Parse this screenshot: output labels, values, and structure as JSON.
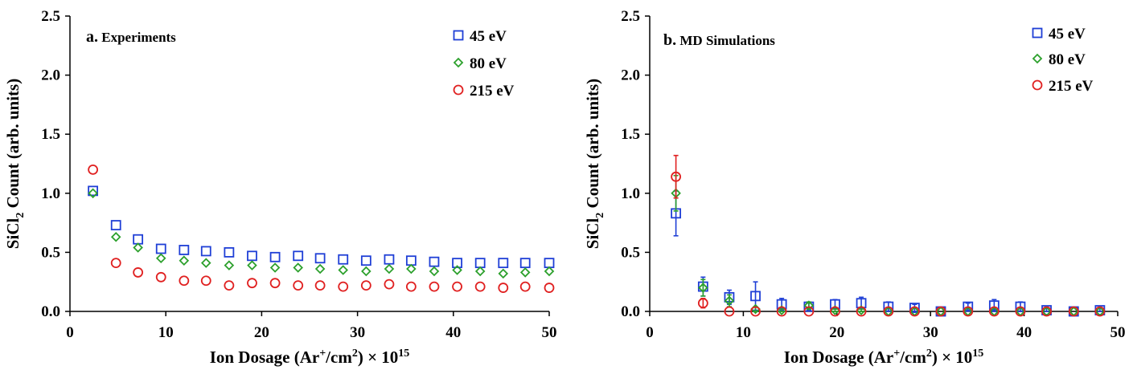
{
  "chart_data": [
    {
      "type": "scatter",
      "panel_label": "a.",
      "panel_title": "Experiments",
      "xlabel": "Ion Dosage (Ar",
      "xlabel_sup1": "+",
      "xlabel_mid": "/cm",
      "xlabel_sup2": "2",
      "xlabel_end": ") × 10",
      "xlabel_sup3": "15",
      "ylabel": "SiCl",
      "ylabel_sub": "2",
      "ylabel_rest": " Count (arb. units)",
      "xlim": [
        0,
        50
      ],
      "ylim": [
        0,
        2.5
      ],
      "xticks": [
        "0",
        "10",
        "20",
        "30",
        "40",
        "50"
      ],
      "yticks": [
        "0.0",
        "0.5",
        "1.0",
        "1.5",
        "2.0",
        "2.5"
      ],
      "legend_position": "top-right",
      "series": [
        {
          "name": "45 eV",
          "marker": "square",
          "color": "#1f3fd6",
          "x": [
            2.4,
            4.8,
            7.1,
            9.5,
            11.9,
            14.2,
            16.6,
            19.0,
            21.4,
            23.8,
            26.1,
            28.5,
            30.9,
            33.3,
            35.6,
            38.0,
            40.4,
            42.8,
            45.2,
            47.5,
            50.0
          ],
          "y": [
            1.02,
            0.73,
            0.61,
            0.53,
            0.52,
            0.51,
            0.5,
            0.47,
            0.46,
            0.47,
            0.45,
            0.44,
            0.43,
            0.44,
            0.43,
            0.42,
            0.41,
            0.41,
            0.41,
            0.41,
            0.41
          ]
        },
        {
          "name": "80 eV",
          "marker": "diamond",
          "color": "#2ca02c",
          "x": [
            2.4,
            4.8,
            7.1,
            9.5,
            11.9,
            14.2,
            16.6,
            19.0,
            21.4,
            23.8,
            26.1,
            28.5,
            30.9,
            33.3,
            35.6,
            38.0,
            40.4,
            42.8,
            45.2,
            47.5,
            50.0
          ],
          "y": [
            1.0,
            0.63,
            0.54,
            0.45,
            0.43,
            0.41,
            0.39,
            0.39,
            0.37,
            0.37,
            0.36,
            0.35,
            0.34,
            0.36,
            0.36,
            0.34,
            0.35,
            0.34,
            0.32,
            0.33,
            0.34
          ]
        },
        {
          "name": "215 eV",
          "marker": "circle",
          "color": "#e02020",
          "x": [
            2.4,
            4.8,
            7.1,
            9.5,
            11.9,
            14.2,
            16.6,
            19.0,
            21.4,
            23.8,
            26.1,
            28.5,
            30.9,
            33.3,
            35.6,
            38.0,
            40.4,
            42.8,
            45.2,
            47.5,
            50.0
          ],
          "y": [
            1.2,
            0.41,
            0.33,
            0.29,
            0.26,
            0.26,
            0.22,
            0.24,
            0.24,
            0.22,
            0.22,
            0.21,
            0.22,
            0.23,
            0.21,
            0.21,
            0.21,
            0.21,
            0.2,
            0.21,
            0.2
          ]
        }
      ]
    },
    {
      "type": "scatter",
      "panel_label": "b.",
      "panel_title": "MD Simulations",
      "xlabel": "Ion Dosage (Ar",
      "xlabel_sup1": "+",
      "xlabel_mid": "/cm",
      "xlabel_sup2": "2",
      "xlabel_end": ") × 10",
      "xlabel_sup3": "15",
      "ylabel": "SiCl",
      "ylabel_sub": "2",
      "ylabel_rest": " Count (arb. units)",
      "xlim": [
        0,
        50
      ],
      "ylim": [
        0,
        2.5
      ],
      "xticks": [
        "0",
        "10",
        "20",
        "30",
        "40",
        "50"
      ],
      "yticks": [
        "0.0",
        "0.5",
        "1.0",
        "1.5",
        "2.0",
        "2.5"
      ],
      "legend_position": "top-right",
      "series": [
        {
          "name": "45 eV",
          "marker": "square",
          "color": "#1f3fd6",
          "x": [
            2.8,
            5.7,
            8.5,
            11.3,
            14.1,
            17.0,
            19.8,
            22.6,
            25.5,
            28.3,
            31.1,
            34.0,
            36.8,
            39.6,
            42.4,
            45.3,
            48.1
          ],
          "y": [
            0.83,
            0.21,
            0.12,
            0.13,
            0.06,
            0.04,
            0.06,
            0.07,
            0.04,
            0.03,
            0.0,
            0.04,
            0.05,
            0.04,
            0.01,
            0.0,
            0.01
          ],
          "err": [
            0.19,
            0.08,
            0.06,
            0.12,
            0.05,
            0.03,
            0.04,
            0.05,
            0.04,
            0.03,
            0.0,
            0.03,
            0.05,
            0.04,
            0.02,
            0.0,
            0.02
          ]
        },
        {
          "name": "80 eV",
          "marker": "diamond",
          "color": "#2ca02c",
          "x": [
            2.8,
            5.7,
            8.5,
            11.3,
            14.1,
            17.0,
            19.8,
            22.6,
            25.5,
            28.3,
            31.1,
            34.0,
            36.8,
            39.6,
            42.4,
            45.3,
            48.1
          ],
          "y": [
            1.0,
            0.2,
            0.09,
            0.02,
            0.01,
            0.05,
            0.01,
            0.01,
            0.0,
            0.0,
            0.0,
            0.0,
            0.0,
            0.0,
            0.0,
            0.0,
            0.0
          ],
          "err": [
            0.15,
            0.07,
            0.05,
            0.02,
            0.01,
            0.03,
            0.01,
            0.01,
            0.0,
            0.0,
            0.0,
            0.0,
            0.0,
            0.0,
            0.0,
            0.0,
            0.0
          ]
        },
        {
          "name": "215 eV",
          "marker": "circle",
          "color": "#e02020",
          "x": [
            2.8,
            5.7,
            8.5,
            11.3,
            14.1,
            17.0,
            19.8,
            22.6,
            25.5,
            28.3,
            31.1,
            34.0,
            36.8,
            39.6,
            42.4,
            45.3,
            48.1
          ],
          "y": [
            1.14,
            0.07,
            0.0,
            0.0,
            0.0,
            0.0,
            0.0,
            0.0,
            0.0,
            0.0,
            0.0,
            0.0,
            0.0,
            0.0,
            0.0,
            0.0,
            0.0
          ],
          "err": [
            0.18,
            0.04,
            0.0,
            0.0,
            0.0,
            0.0,
            0.0,
            0.0,
            0.0,
            0.0,
            0.0,
            0.0,
            0.0,
            0.0,
            0.0,
            0.0,
            0.0
          ]
        }
      ]
    }
  ]
}
